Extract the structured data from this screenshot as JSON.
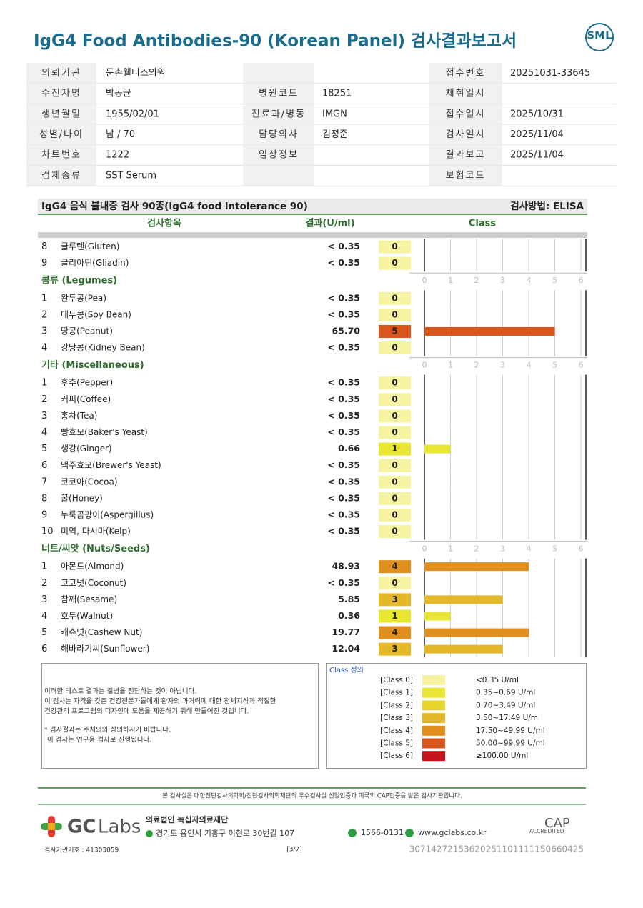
{
  "header": {
    "title": "IgG4 Food Antibodies-90 (Korean Panel) 검사결과보고서",
    "logo": "SML"
  },
  "info": {
    "rows": [
      {
        "left": {
          "label": "의뢰기관",
          "value": "둔촌웰니스의원"
        },
        "right": {
          "label": "접수번호",
          "value": "20251031-33645"
        }
      },
      {
        "left": {
          "label": "수진자명",
          "value": "박동균"
        },
        "mid": {
          "label": "병원코드",
          "value": "18251"
        },
        "right": {
          "label": "채취일시"
        }
      },
      {
        "left": {
          "label": "생년월일",
          "value": "1955/02/01"
        },
        "mid": {
          "label": "진료과/병동",
          "value": "IMGN"
        },
        "right": {
          "label": "접수일시",
          "value": "2025/10/31"
        }
      },
      {
        "left": {
          "label": "성별/나이",
          "value": "남 / 70"
        },
        "mid": {
          "label": "담당의사",
          "value": "김정준"
        },
        "right": {
          "label": "검사일시",
          "value": "2025/11/04"
        }
      },
      {
        "left": {
          "label": "차트번호",
          "value": "1222"
        },
        "mid": {
          "label": "임상정보"
        },
        "right": {
          "label": "결과보고",
          "value": "2025/11/04"
        }
      },
      {
        "left": {
          "label": "검체종류",
          "value": "SST Serum"
        },
        "right": {
          "label": "보험코드"
        }
      }
    ]
  },
  "results": {
    "title": "IgG4 음식 불내증 검사 90종(IgG4 food intolerance 90)",
    "method": "검사방법: ELISA",
    "columns": [
      "검사항목",
      "결과(U/ml)",
      "Class"
    ],
    "class_ticks": [
      0,
      1,
      2,
      3,
      4,
      5,
      6
    ],
    "groups": [
      {
        "items": [
          {
            "no": 8,
            "name": "글루텐(Gluten)",
            "result": "< 0.35",
            "class": 0
          },
          {
            "no": 9,
            "name": "글리아딘(Gliadin)",
            "result": "< 0.35",
            "class": 0
          }
        ]
      },
      {
        "name": "콩류 (Legumes)",
        "items": [
          {
            "no": 1,
            "name": "완두콩(Pea)",
            "result": "< 0.35",
            "class": 0
          },
          {
            "no": 2,
            "name": "대두콩(Soy Bean)",
            "result": "< 0.35",
            "class": 0
          },
          {
            "no": 3,
            "name": "땅콩(Peanut)",
            "result": "65.70",
            "class": 5
          },
          {
            "no": 4,
            "name": "강낭콩(Kidney Bean)",
            "result": "< 0.35",
            "class": 0
          }
        ]
      },
      {
        "name": "기타 (Miscellaneous)",
        "items": [
          {
            "no": 1,
            "name": "후추(Pepper)",
            "result": "< 0.35",
            "class": 0
          },
          {
            "no": 2,
            "name": "커피(Coffee)",
            "result": "< 0.35",
            "class": 0
          },
          {
            "no": 3,
            "name": "홍차(Tea)",
            "result": "< 0.35",
            "class": 0
          },
          {
            "no": 4,
            "name": "빵효모(Baker's Yeast)",
            "result": "< 0.35",
            "class": 0
          },
          {
            "no": 5,
            "name": "생강(Ginger)",
            "result": "0.66",
            "class": 1
          },
          {
            "no": 6,
            "name": "맥주효모(Brewer's Yeast)",
            "result": "< 0.35",
            "class": 0
          },
          {
            "no": 7,
            "name": "코코아(Cocoa)",
            "result": "< 0.35",
            "class": 0
          },
          {
            "no": 8,
            "name": "꿀(Honey)",
            "result": "< 0.35",
            "class": 0
          },
          {
            "no": 9,
            "name": "누룩곰팡이(Aspergillus)",
            "result": "< 0.35",
            "class": 0
          },
          {
            "no": 10,
            "name": "미역, 다시마(Kelp)",
            "result": "< 0.35",
            "class": 0
          }
        ]
      },
      {
        "name": "너트/씨앗 (Nuts/Seeds)",
        "items": [
          {
            "no": 1,
            "name": "아몬드(Almond)",
            "result": "48.93",
            "class": 4
          },
          {
            "no": 2,
            "name": "코코넛(Coconut)",
            "result": "< 0.35",
            "class": 0
          },
          {
            "no": 3,
            "name": "참깨(Sesame)",
            "result": "5.85",
            "class": 3
          },
          {
            "no": 4,
            "name": "호두(Walnut)",
            "result": "0.36",
            "class": 1
          },
          {
            "no": 5,
            "name": "캐슈넛(Cashew Nut)",
            "result": "19.77",
            "class": 4
          },
          {
            "no": 6,
            "name": "해바라기씨(Sunflower)",
            "result": "12.04",
            "class": 3
          }
        ]
      }
    ]
  },
  "notice": {
    "lines": [
      "이러한 테스트 결과는 질병을 진단하는 것이 아닙니다.",
      "이 검사는 자격을 갖춘 건강전문가들에게 환자의 과거력에 대한 전체지식과 적절한",
      "건강관리 프로그램의 디자인에 도움을 제공하기 위해 만들어진 것입니다.",
      "* 검사결과는 주치의와 상의하시기 바랍니다.",
      "이 검사는 연구용 검사로 진행됩니다."
    ]
  },
  "class_definition": {
    "title": "Class 정의",
    "classes": [
      {
        "label": "[Class 0]",
        "color": "#f6f3a2",
        "range": "<0.35 U/ml"
      },
      {
        "label": "[Class 1]",
        "color": "#e9e733",
        "range": "0.35~0.69 U/ml"
      },
      {
        "label": "[Class 2]",
        "color": "#e7d42b",
        "range": "0.70~3.49 U/ml"
      },
      {
        "label": "[Class 3]",
        "color": "#e5b82a",
        "range": "3.50~17.49 U/ml"
      },
      {
        "label": "[Class 4]",
        "color": "#df901f",
        "range": "17.50~49.99 U/ml"
      },
      {
        "label": "[Class 5]",
        "color": "#d8551b",
        "range": "50.00~99.99 U/ml"
      },
      {
        "label": "[Class 6]",
        "color": "#c5141b",
        "range": "≥100.00 U/ml"
      }
    ]
  },
  "footer": {
    "accreditation": "본 검사실은 대한진단검사의학회/진단검사의학재단의 우수검사실 신임인증과 미국의 CAP인증을 받은 검사기관입니다.",
    "brand_gc": "GC",
    "brand_labs": "Labs",
    "foundation": "의료법인 녹십자의료재단",
    "address": "경기도 용인시 기흥구 이현로 30번길 107",
    "phone": "1566-0131",
    "web": "www.gclabs.co.kr",
    "cap": "CAP",
    "cap_sub": "ACCREDITED",
    "institution_code": "검사기관기호 : 41303059",
    "page": "[3/7]",
    "barcode_number": "30714272153620251101111150660425"
  }
}
